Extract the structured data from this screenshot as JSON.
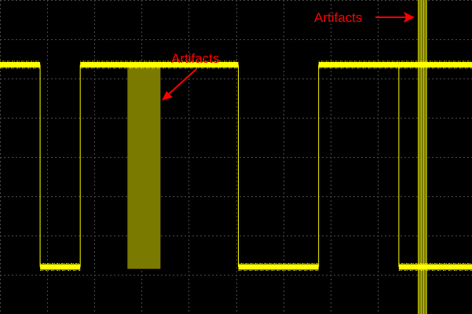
{
  "chart_data": {
    "type": "line",
    "title": "",
    "xlabel": "",
    "ylabel": "",
    "xlim": [
      0,
      10
    ],
    "ylim": [
      -4,
      4
    ],
    "grid": true,
    "grid_divisions": {
      "x": 10,
      "y": 8
    },
    "series": [
      {
        "x": [
          0,
          0.85,
          0.85,
          1.7,
          1.7,
          5.05,
          5.05,
          6.75,
          6.75,
          8.45,
          8.45,
          10
        ],
        "y": [
          2.35,
          2.35,
          -2.8,
          -2.8,
          2.35,
          2.35,
          -2.8,
          -2.8,
          2.35,
          2.35,
          -2.8,
          -2.8
        ]
      },
      {
        "x": [
          8.45,
          10
        ],
        "y": [
          2.35,
          2.35
        ]
      }
    ],
    "artifact_regions": [
      {
        "x": [
          2.7,
          3.4
        ],
        "y": [
          -2.85,
          2.35
        ],
        "color": "#7a7a00"
      },
      {
        "x": [
          8.85,
          9.05
        ],
        "y": [
          -4,
          4
        ],
        "color": "#7a7a00"
      }
    ],
    "annotations": [
      {
        "text": "Artifacts",
        "color": "#ff0000"
      },
      {
        "text": "Artifacts",
        "color": "#ff0000"
      }
    ],
    "colors": {
      "background": "#000000",
      "grid": "#4a4a4a",
      "trace": "#ffff00",
      "artifact": "#7a7a00",
      "annotation": "#ff0000"
    }
  }
}
